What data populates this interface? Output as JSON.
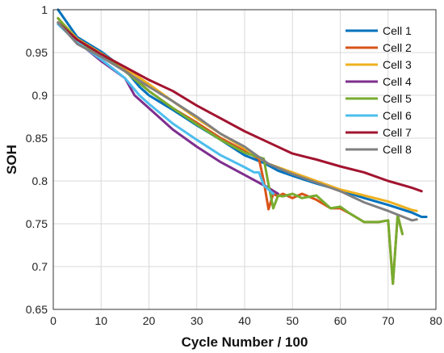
{
  "chart_data": {
    "type": "line",
    "xlabel": "Cycle Number / 100",
    "ylabel": "SOH",
    "xlim": [
      0,
      80
    ],
    "ylim": [
      0.65,
      1.0
    ],
    "xticks": [
      "0",
      "10",
      "20",
      "30",
      "40",
      "50",
      "60",
      "70",
      "80"
    ],
    "yticks": [
      "0.65",
      "0.7",
      "0.75",
      "0.8",
      "0.85",
      "0.9",
      "0.95",
      "1"
    ],
    "grid": true,
    "legend_position": "top-right",
    "series": [
      {
        "name": "Cell 1",
        "color": "#0072BD",
        "x": [
          1,
          5,
          10,
          15,
          18,
          20,
          25,
          30,
          35,
          40,
          44,
          47,
          50,
          55,
          60,
          65,
          70,
          75,
          77,
          78
        ],
        "y": [
          1.0,
          0.968,
          0.951,
          0.93,
          0.91,
          0.9,
          0.883,
          0.865,
          0.848,
          0.83,
          0.821,
          0.812,
          0.806,
          0.797,
          0.789,
          0.78,
          0.772,
          0.763,
          0.758,
          0.758
        ]
      },
      {
        "name": "Cell 2",
        "color": "#D95319",
        "x": [
          1,
          5,
          10,
          15,
          20,
          25,
          30,
          35,
          40,
          43,
          44,
          45,
          46,
          47,
          48,
          50,
          52,
          55,
          58,
          60,
          62,
          65,
          68,
          70,
          71,
          72,
          73
        ],
        "y": [
          0.99,
          0.965,
          0.948,
          0.93,
          0.905,
          0.885,
          0.868,
          0.85,
          0.835,
          0.826,
          0.8,
          0.767,
          0.785,
          0.782,
          0.785,
          0.78,
          0.785,
          0.778,
          0.768,
          0.768,
          0.762,
          0.752,
          0.752,
          0.754,
          0.68,
          0.76,
          0.738
        ]
      },
      {
        "name": "Cell 3",
        "color": "#EDB120",
        "x": [
          1,
          5,
          10,
          15,
          20,
          25,
          30,
          35,
          40,
          45,
          50,
          55,
          60,
          65,
          70,
          75,
          76
        ],
        "y": [
          0.99,
          0.966,
          0.949,
          0.932,
          0.913,
          0.893,
          0.873,
          0.855,
          0.838,
          0.82,
          0.81,
          0.8,
          0.79,
          0.783,
          0.776,
          0.766,
          0.765
        ]
      },
      {
        "name": "Cell 4",
        "color": "#7E2F8E",
        "x": [
          1,
          5,
          10,
          15,
          17,
          20,
          25,
          30,
          35,
          40,
          45,
          47
        ],
        "y": [
          0.985,
          0.963,
          0.94,
          0.92,
          0.9,
          0.885,
          0.86,
          0.84,
          0.822,
          0.807,
          0.792,
          0.785
        ]
      },
      {
        "name": "Cell 5",
        "color": "#77AC30",
        "x": [
          1,
          5,
          10,
          15,
          20,
          25,
          30,
          35,
          40,
          44,
          45,
          46,
          47,
          48,
          50,
          52,
          55,
          58,
          60,
          62,
          65,
          68,
          70,
          71,
          72,
          73
        ],
        "y": [
          0.99,
          0.964,
          0.947,
          0.928,
          0.905,
          0.885,
          0.866,
          0.848,
          0.833,
          0.826,
          0.796,
          0.768,
          0.783,
          0.782,
          0.785,
          0.78,
          0.783,
          0.768,
          0.77,
          0.762,
          0.752,
          0.752,
          0.754,
          0.68,
          0.76,
          0.738
        ]
      },
      {
        "name": "Cell 6",
        "color": "#4DBEEE",
        "x": [
          1,
          5,
          10,
          15,
          18,
          20,
          25,
          30,
          35,
          40,
          42,
          43,
          44,
          45,
          46
        ],
        "y": [
          0.983,
          0.962,
          0.942,
          0.92,
          0.9,
          0.89,
          0.867,
          0.848,
          0.83,
          0.816,
          0.81,
          0.81,
          0.795,
          0.79,
          0.785
        ]
      },
      {
        "name": "Cell 7",
        "color": "#A2142F",
        "x": [
          1,
          5,
          10,
          15,
          20,
          25,
          30,
          35,
          40,
          45,
          50,
          55,
          60,
          65,
          70,
          75,
          77
        ],
        "y": [
          0.985,
          0.965,
          0.948,
          0.933,
          0.918,
          0.905,
          0.888,
          0.873,
          0.858,
          0.845,
          0.832,
          0.825,
          0.817,
          0.81,
          0.8,
          0.792,
          0.788
        ]
      },
      {
        "name": "Cell 8",
        "color": "#808080",
        "x": [
          1,
          5,
          10,
          15,
          20,
          25,
          30,
          35,
          40,
          45,
          50,
          55,
          60,
          65,
          70,
          75,
          76
        ],
        "y": [
          0.985,
          0.96,
          0.945,
          0.928,
          0.91,
          0.893,
          0.875,
          0.855,
          0.84,
          0.82,
          0.808,
          0.798,
          0.788,
          0.775,
          0.765,
          0.754,
          0.755
        ]
      }
    ]
  }
}
